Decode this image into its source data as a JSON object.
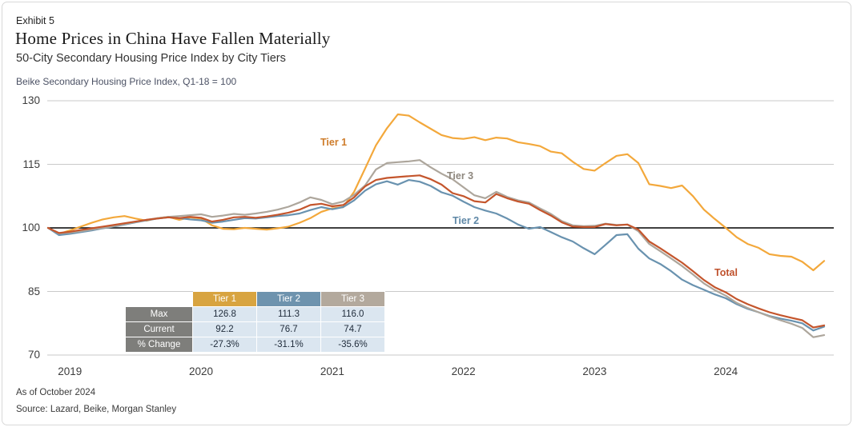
{
  "header": {
    "exhibit": "Exhibit 5",
    "title": "Home Prices in China Have Fallen Materially",
    "subtitle": "50-City Secondary Housing Price Index by City Tiers",
    "axis_note": "Beike Secondary Housing Price Index, Q1-18 = 100"
  },
  "footer": {
    "as_of": "As of October 2024",
    "source": "Source: Lazard, Beike, Morgan Stanley"
  },
  "chart_data": {
    "type": "line",
    "title": "50-City Secondary Housing Price Index by City Tiers",
    "x_start": "2018-11",
    "x_end": "2024-10",
    "x_frequency": "monthly",
    "x_tick_labels": [
      "2019",
      "2020",
      "2021",
      "2022",
      "2023",
      "2024"
    ],
    "ylim": [
      70,
      130
    ],
    "y_ticks": [
      130,
      115,
      100,
      85,
      70
    ],
    "baseline": 100,
    "grid": "horizontal",
    "legend_position": "inline-labels",
    "series": [
      {
        "name": "Tier 1",
        "color": "#f3a83b",
        "label_color": "#ce7c2a",
        "max": 126.8,
        "current": 92.2,
        "values": [
          100.0,
          98.6,
          99.4,
          100.3,
          101.2,
          102.0,
          102.5,
          102.8,
          102.2,
          101.7,
          102.3,
          102.6,
          101.9,
          102.5,
          102.2,
          100.6,
          99.8,
          99.7,
          100.0,
          99.8,
          99.6,
          99.9,
          100.3,
          101.2,
          102.3,
          103.8,
          104.6,
          104.9,
          108.5,
          114.0,
          119.5,
          123.5,
          126.8,
          126.5,
          124.9,
          123.4,
          121.9,
          121.2,
          121.0,
          121.4,
          120.7,
          121.3,
          121.1,
          120.2,
          119.8,
          119.3,
          118.0,
          117.6,
          115.6,
          113.9,
          113.5,
          115.3,
          117.0,
          117.4,
          115.3,
          110.3,
          109.9,
          109.4,
          110.0,
          107.5,
          104.3,
          102.1,
          100.0,
          97.8,
          96.2,
          95.3,
          93.8,
          93.4,
          93.2,
          92.0,
          90.0,
          92.2
        ]
      },
      {
        "name": "Tier 2",
        "color": "#6992af",
        "label_color": "#5e87a6",
        "max": 111.3,
        "current": 76.7,
        "values": [
          100.0,
          98.3,
          98.6,
          99.0,
          99.4,
          99.9,
          100.3,
          100.8,
          101.3,
          101.8,
          102.2,
          102.5,
          102.3,
          102.0,
          101.8,
          101.2,
          101.5,
          101.9,
          102.3,
          102.2,
          102.5,
          102.8,
          103.0,
          103.4,
          104.2,
          104.9,
          104.4,
          104.9,
          106.5,
          108.8,
          110.3,
          111.0,
          110.2,
          111.3,
          110.9,
          109.9,
          108.4,
          107.6,
          106.2,
          104.9,
          104.1,
          103.4,
          102.2,
          100.8,
          99.8,
          100.2,
          99.0,
          97.8,
          96.8,
          95.2,
          93.8,
          96.0,
          98.3,
          98.5,
          95.1,
          92.8,
          91.5,
          89.8,
          87.8,
          86.5,
          85.4,
          84.3,
          83.4,
          82.0,
          80.9,
          80.1,
          79.2,
          78.6,
          78.1,
          77.5,
          75.8,
          76.7
        ]
      },
      {
        "name": "Tier 3",
        "color": "#ada69c",
        "label_color": "#8e877e",
        "max": 116.0,
        "current": 74.7,
        "values": [
          100.0,
          98.7,
          98.9,
          99.2,
          99.6,
          100.0,
          100.4,
          100.9,
          101.4,
          101.9,
          102.3,
          102.6,
          102.8,
          103.0,
          103.2,
          102.6,
          102.9,
          103.3,
          103.1,
          103.4,
          103.8,
          104.3,
          105.0,
          106.0,
          107.2,
          106.6,
          105.6,
          106.2,
          107.8,
          110.0,
          113.8,
          115.3,
          115.5,
          115.7,
          116.0,
          114.3,
          112.8,
          111.5,
          109.6,
          107.7,
          107.0,
          108.5,
          107.3,
          106.5,
          106.0,
          104.6,
          103.3,
          101.6,
          100.6,
          100.4,
          100.5,
          101.0,
          100.7,
          100.8,
          99.2,
          96.2,
          94.5,
          92.8,
          91.0,
          89.0,
          86.9,
          85.3,
          84.0,
          82.3,
          81.1,
          80.1,
          79.1,
          78.2,
          77.4,
          76.4,
          74.2,
          74.7
        ]
      },
      {
        "name": "Total",
        "color": "#c4552c",
        "label_color": "#bf512c",
        "values": [
          100.0,
          98.8,
          99.1,
          99.5,
          99.9,
          100.3,
          100.7,
          101.1,
          101.5,
          101.9,
          102.2,
          102.5,
          102.3,
          102.6,
          102.4,
          101.5,
          101.9,
          102.5,
          102.6,
          102.4,
          102.7,
          103.1,
          103.6,
          104.3,
          105.4,
          105.7,
          105.1,
          105.4,
          107.2,
          109.8,
          111.3,
          111.8,
          112.0,
          112.2,
          112.4,
          111.5,
          110.2,
          108.2,
          107.5,
          106.3,
          106.0,
          108.0,
          107.0,
          106.2,
          105.7,
          104.2,
          102.9,
          101.3,
          100.3,
          100.2,
          100.2,
          100.9,
          100.6,
          100.8,
          99.6,
          96.8,
          95.2,
          93.5,
          91.8,
          89.8,
          87.7,
          86.0,
          84.8,
          83.2,
          82.0,
          81.0,
          80.1,
          79.4,
          78.8,
          78.2,
          76.5,
          77.0
        ]
      }
    ]
  },
  "summary_table": {
    "columns": [
      "Tier 1",
      "Tier 2",
      "Tier 3"
    ],
    "column_colors": [
      "#d8a440",
      "#6e93ae",
      "#b3a99d"
    ],
    "rows": [
      {
        "label": "Max",
        "values": [
          "126.8",
          "111.3",
          "116.0"
        ]
      },
      {
        "label": "Current",
        "values": [
          "92.2",
          "76.7",
          "74.7"
        ]
      },
      {
        "label": "% Change",
        "values": [
          "-27.3%",
          "-31.1%",
          "-35.6%"
        ]
      }
    ]
  }
}
